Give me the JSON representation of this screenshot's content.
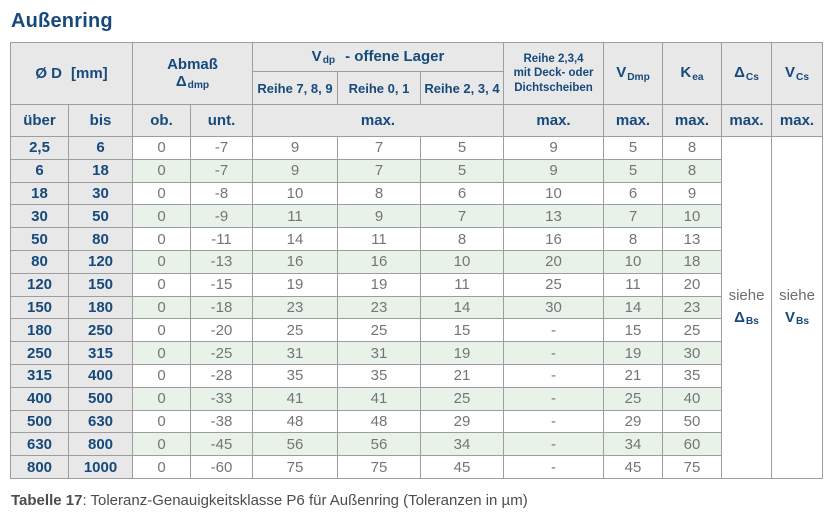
{
  "title": "Außenring",
  "colors": {
    "accent_navy": "#164a7c",
    "header_bg": "#e8e8e8",
    "stripe_green": "#e9f2e9",
    "data_text": "#757575",
    "border": "#9d9d9d"
  },
  "table": {
    "header": {
      "d_label": "Ø D",
      "d_unit": "[mm]",
      "abmass_title": "Abmaß",
      "abmass_symbol": "Δ",
      "abmass_sub": "dmp",
      "vdp_symbol": "V",
      "vdp_sub": "dp",
      "vdp_rest": "-  offene Lager",
      "reihe_789": "Reihe 7, 8, 9",
      "reihe_01": "Reihe 0, 1",
      "reihe_234": "Reihe 2, 3, 4",
      "deck_lines": [
        "Reihe 2,3,4",
        "mit Deck- oder",
        "Dichtscheiben"
      ],
      "vdmp_symbol": "V",
      "vdmp_sub": "Dmp",
      "kea_symbol": "K",
      "kea_sub": "ea",
      "dcs_symbol": "Δ",
      "dcs_sub": "Cs",
      "vcs_symbol": "V",
      "vcs_sub": "Cs",
      "ueber": "über",
      "bis": "bis",
      "ob": "ob.",
      "unt": "unt.",
      "max": "max."
    },
    "see_delta": {
      "word": "siehe",
      "symbol": "Δ",
      "sub": "Bs"
    },
    "see_v": {
      "word": "siehe",
      "symbol": "V",
      "sub": "Bs"
    },
    "column_keys": [
      "ueber",
      "bis",
      "ob",
      "unt",
      "r789",
      "r01",
      "r234",
      "deck",
      "vdmp",
      "kea"
    ],
    "rows": [
      {
        "ueber": "2,5",
        "bis": "6",
        "ob": "0",
        "unt": "-7",
        "r789": "9",
        "r01": "7",
        "r234": "5",
        "deck": "9",
        "vdmp": "5",
        "kea": "8"
      },
      {
        "ueber": "6",
        "bis": "18",
        "ob": "0",
        "unt": "-7",
        "r789": "9",
        "r01": "7",
        "r234": "5",
        "deck": "9",
        "vdmp": "5",
        "kea": "8"
      },
      {
        "ueber": "18",
        "bis": "30",
        "ob": "0",
        "unt": "-8",
        "r789": "10",
        "r01": "8",
        "r234": "6",
        "deck": "10",
        "vdmp": "6",
        "kea": "9"
      },
      {
        "ueber": "30",
        "bis": "50",
        "ob": "0",
        "unt": "-9",
        "r789": "11",
        "r01": "9",
        "r234": "7",
        "deck": "13",
        "vdmp": "7",
        "kea": "10"
      },
      {
        "ueber": "50",
        "bis": "80",
        "ob": "0",
        "unt": "-11",
        "r789": "14",
        "r01": "11",
        "r234": "8",
        "deck": "16",
        "vdmp": "8",
        "kea": "13"
      },
      {
        "ueber": "80",
        "bis": "120",
        "ob": "0",
        "unt": "-13",
        "r789": "16",
        "r01": "16",
        "r234": "10",
        "deck": "20",
        "vdmp": "10",
        "kea": "18"
      },
      {
        "ueber": "120",
        "bis": "150",
        "ob": "0",
        "unt": "-15",
        "r789": "19",
        "r01": "19",
        "r234": "11",
        "deck": "25",
        "vdmp": "11",
        "kea": "20"
      },
      {
        "ueber": "150",
        "bis": "180",
        "ob": "0",
        "unt": "-18",
        "r789": "23",
        "r01": "23",
        "r234": "14",
        "deck": "30",
        "vdmp": "14",
        "kea": "23"
      },
      {
        "ueber": "180",
        "bis": "250",
        "ob": "0",
        "unt": "-20",
        "r789": "25",
        "r01": "25",
        "r234": "15",
        "deck": "-",
        "vdmp": "15",
        "kea": "25"
      },
      {
        "ueber": "250",
        "bis": "315",
        "ob": "0",
        "unt": "-25",
        "r789": "31",
        "r01": "31",
        "r234": "19",
        "deck": "-",
        "vdmp": "19",
        "kea": "30"
      },
      {
        "ueber": "315",
        "bis": "400",
        "ob": "0",
        "unt": "-28",
        "r789": "35",
        "r01": "35",
        "r234": "21",
        "deck": "-",
        "vdmp": "21",
        "kea": "35"
      },
      {
        "ueber": "400",
        "bis": "500",
        "ob": "0",
        "unt": "-33",
        "r789": "41",
        "r01": "41",
        "r234": "25",
        "deck": "-",
        "vdmp": "25",
        "kea": "40"
      },
      {
        "ueber": "500",
        "bis": "630",
        "ob": "0",
        "unt": "-38",
        "r789": "48",
        "r01": "48",
        "r234": "29",
        "deck": "-",
        "vdmp": "29",
        "kea": "50"
      },
      {
        "ueber": "630",
        "bis": "800",
        "ob": "0",
        "unt": "-45",
        "r789": "56",
        "r01": "56",
        "r234": "34",
        "deck": "-",
        "vdmp": "34",
        "kea": "60"
      },
      {
        "ueber": "800",
        "bis": "1000",
        "ob": "0",
        "unt": "-60",
        "r789": "75",
        "r01": "75",
        "r234": "45",
        "deck": "-",
        "vdmp": "45",
        "kea": "75"
      }
    ]
  },
  "caption": {
    "label": "Tabelle 17",
    "rest": ": Toleranz-Genauigkeitsklasse P6 für Außenring (Toleranzen in µm)"
  }
}
